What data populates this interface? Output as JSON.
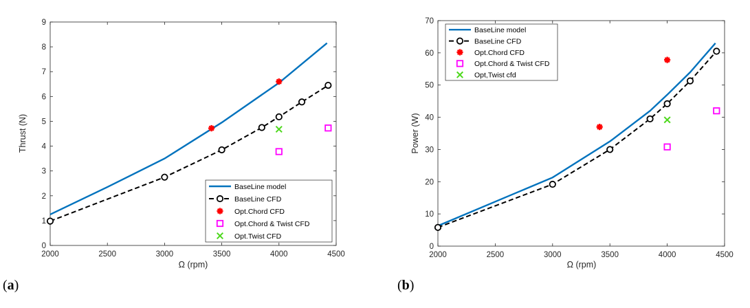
{
  "colors": {
    "baseline_model": "#0072BD",
    "baseline_cfd": "#000000",
    "opt_chord": "#FF0000",
    "opt_chord_twist": "#FF00FF",
    "opt_twist": "#4DD81C"
  },
  "chart_data": [
    {
      "type": "line",
      "panel_label": "a",
      "title": "",
      "xlabel": "Ω (rpm)",
      "ylabel": "Thrust (N)",
      "xlim": [
        2000,
        4500
      ],
      "ylim": [
        0,
        9
      ],
      "xticks": [
        2000,
        2500,
        3000,
        3500,
        4000,
        4500
      ],
      "yticks": [
        0,
        1,
        2,
        3,
        4,
        5,
        6,
        7,
        8,
        9
      ],
      "grid": false,
      "legend_position": "bottom-right",
      "series": [
        {
          "name": "BaseLine model",
          "style": "line",
          "x": [
            2000,
            2500,
            3000,
            3500,
            4000,
            4420
          ],
          "y": [
            1.25,
            2.35,
            3.5,
            4.95,
            6.55,
            8.15
          ]
        },
        {
          "name": "BaseLine CFD",
          "style": "dashed-circles",
          "x": [
            2000,
            3000,
            3500,
            3850,
            4000,
            4200,
            4430
          ],
          "y": [
            0.98,
            2.75,
            3.85,
            4.75,
            5.18,
            5.78,
            6.45
          ]
        },
        {
          "name": "Opt.Chord CFD",
          "style": "asterisk",
          "x": [
            3410,
            4000
          ],
          "y": [
            4.72,
            6.6
          ]
        },
        {
          "name": "Opt.Chord & Twist CFD",
          "style": "square",
          "x": [
            4000,
            4430
          ],
          "y": [
            3.78,
            4.73
          ]
        },
        {
          "name": "Opt.Twist CFD",
          "style": "cross",
          "x": [
            4000
          ],
          "y": [
            4.68
          ]
        }
      ]
    },
    {
      "type": "line",
      "panel_label": "b",
      "title": "",
      "xlabel": "Ω (rpm)",
      "ylabel": "Power (W)",
      "xlim": [
        2000,
        4500
      ],
      "ylim": [
        0,
        70
      ],
      "xticks": [
        2000,
        2500,
        3000,
        3500,
        4000,
        4500
      ],
      "yticks": [
        0,
        10,
        20,
        30,
        40,
        50,
        60,
        70
      ],
      "grid": false,
      "legend_position": "top-left",
      "series": [
        {
          "name": "BaseLine model",
          "style": "line",
          "x": [
            2000,
            2500,
            3000,
            3500,
            3850,
            4000,
            4200,
            4420
          ],
          "y": [
            6.3,
            13.8,
            21.3,
            32.5,
            42,
            47,
            54,
            63
          ]
        },
        {
          "name": "BaseLine CFD",
          "style": "dashed-circles",
          "x": [
            2000,
            3000,
            3500,
            3850,
            4000,
            4200,
            4430
          ],
          "y": [
            5.8,
            19.2,
            30,
            39.5,
            44.2,
            51.3,
            60.5
          ]
        },
        {
          "name": "Opt.Chord CFD",
          "style": "asterisk",
          "x": [
            3410,
            4000
          ],
          "y": [
            37,
            57.8
          ]
        },
        {
          "name": "Opt.Chord & Twist CFD",
          "style": "square",
          "x": [
            4000,
            4430
          ],
          "y": [
            30.8,
            42
          ]
        },
        {
          "name": "Opt,Twist cfd",
          "style": "cross",
          "x": [
            4000
          ],
          "y": [
            39.2
          ]
        }
      ]
    }
  ]
}
